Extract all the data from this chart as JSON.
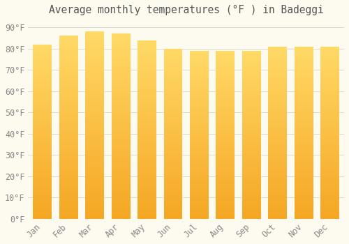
{
  "title": "Average monthly temperatures (°F ) in Badeggi",
  "months": [
    "Jan",
    "Feb",
    "Mar",
    "Apr",
    "May",
    "Jun",
    "Jul",
    "Aug",
    "Sep",
    "Oct",
    "Nov",
    "Dec"
  ],
  "values": [
    82,
    86,
    88,
    87,
    84,
    80,
    79,
    79,
    79,
    81,
    81,
    81
  ],
  "bar_color_bottom": "#F5A623",
  "bar_color_top": "#FFD966",
  "background_color": "#FDFAF0",
  "grid_color": "#D8D8D8",
  "text_color": "#888888",
  "ylim": [
    0,
    93
  ],
  "yticks": [
    0,
    10,
    20,
    30,
    40,
    50,
    60,
    70,
    80,
    90
  ],
  "bar_width": 0.72,
  "title_fontsize": 10.5,
  "tick_fontsize": 8.5
}
